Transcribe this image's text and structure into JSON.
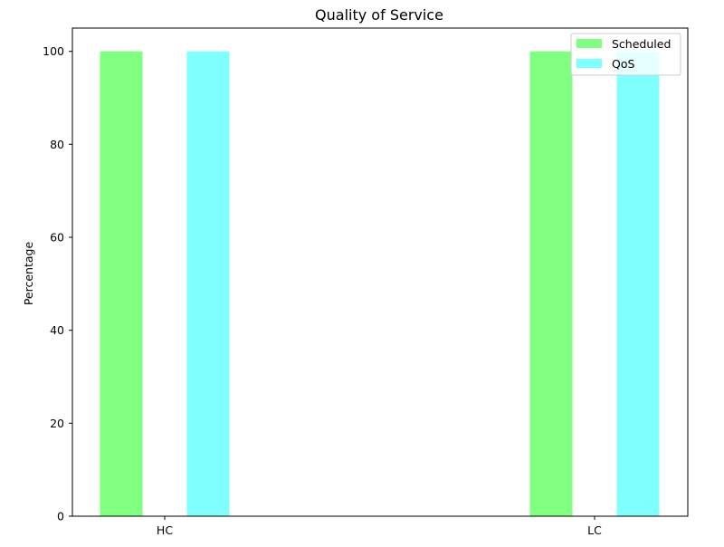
{
  "chart_data": {
    "type": "bar",
    "title": "Quality of Service",
    "xlabel": "",
    "ylabel": "Percentage",
    "categories": [
      "HC",
      "LC"
    ],
    "series": [
      {
        "name": "Scheduled",
        "values": [
          100,
          100
        ],
        "color": "#80ff80"
      },
      {
        "name": "QoS",
        "values": [
          100,
          100
        ],
        "color": "#80ffff"
      }
    ],
    "ylim": [
      0,
      105
    ],
    "yticks": [
      0,
      20,
      40,
      60,
      80,
      100
    ],
    "grid": false,
    "legend_position": "top-right"
  }
}
